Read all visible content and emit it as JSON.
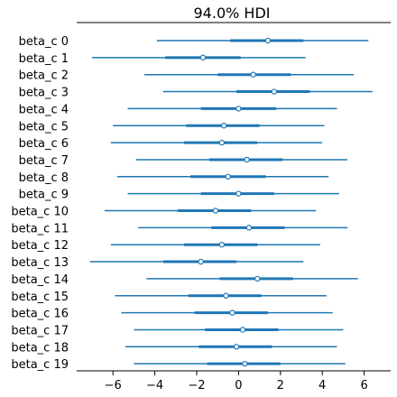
{
  "chart_data": {
    "type": "forest",
    "title": "94.0% HDI",
    "xlabel": "",
    "ylabel": "",
    "xlim": [
      -7.8,
      7.2
    ],
    "xticks": [
      -6,
      -4,
      -2,
      0,
      2,
      4,
      6
    ],
    "xtick_labels": [
      "−6",
      "−4",
      "−2",
      "0",
      "2",
      "4",
      "6"
    ],
    "colors": {
      "line": "#1f77b4",
      "point_fill": "#ffffff",
      "axis": "#000000"
    },
    "series": [
      {
        "name": "beta_c 0",
        "hdi_low": -3.9,
        "iqr_low": -0.4,
        "median": 1.4,
        "iqr_high": 3.1,
        "hdi_high": 6.2
      },
      {
        "name": "beta_c 1",
        "hdi_low": -7.0,
        "iqr_low": -3.5,
        "median": -1.7,
        "iqr_high": 0.1,
        "hdi_high": 3.2
      },
      {
        "name": "beta_c 2",
        "hdi_low": -4.5,
        "iqr_low": -1.0,
        "median": 0.7,
        "iqr_high": 2.5,
        "hdi_high": 5.5
      },
      {
        "name": "beta_c 3",
        "hdi_low": -3.6,
        "iqr_low": -0.1,
        "median": 1.7,
        "iqr_high": 3.4,
        "hdi_high": 6.4
      },
      {
        "name": "beta_c 4",
        "hdi_low": -5.3,
        "iqr_low": -1.8,
        "median": 0.0,
        "iqr_high": 1.8,
        "hdi_high": 4.7
      },
      {
        "name": "beta_c 5",
        "hdi_low": -6.0,
        "iqr_low": -2.5,
        "median": -0.7,
        "iqr_high": 1.0,
        "hdi_high": 4.1
      },
      {
        "name": "beta_c 6",
        "hdi_low": -6.1,
        "iqr_low": -2.6,
        "median": -0.8,
        "iqr_high": 0.9,
        "hdi_high": 4.0
      },
      {
        "name": "beta_c 7",
        "hdi_low": -4.9,
        "iqr_low": -1.4,
        "median": 0.4,
        "iqr_high": 2.1,
        "hdi_high": 5.2
      },
      {
        "name": "beta_c 8",
        "hdi_low": -5.8,
        "iqr_low": -2.3,
        "median": -0.5,
        "iqr_high": 1.3,
        "hdi_high": 4.3
      },
      {
        "name": "beta_c 9",
        "hdi_low": -5.3,
        "iqr_low": -1.8,
        "median": 0.0,
        "iqr_high": 1.7,
        "hdi_high": 4.8
      },
      {
        "name": "beta_c 10",
        "hdi_low": -6.4,
        "iqr_low": -2.9,
        "median": -1.1,
        "iqr_high": 0.6,
        "hdi_high": 3.7
      },
      {
        "name": "beta_c 11",
        "hdi_low": -4.8,
        "iqr_low": -1.3,
        "median": 0.5,
        "iqr_high": 2.2,
        "hdi_high": 5.2
      },
      {
        "name": "beta_c 12",
        "hdi_low": -6.1,
        "iqr_low": -2.6,
        "median": -0.8,
        "iqr_high": 0.9,
        "hdi_high": 3.9
      },
      {
        "name": "beta_c 13",
        "hdi_low": -7.1,
        "iqr_low": -3.6,
        "median": -1.8,
        "iqr_high": -0.1,
        "hdi_high": 3.1
      },
      {
        "name": "beta_c 14",
        "hdi_low": -4.4,
        "iqr_low": -0.9,
        "median": 0.9,
        "iqr_high": 2.6,
        "hdi_high": 5.7
      },
      {
        "name": "beta_c 15",
        "hdi_low": -5.9,
        "iqr_low": -2.4,
        "median": -0.6,
        "iqr_high": 1.1,
        "hdi_high": 4.2
      },
      {
        "name": "beta_c 16",
        "hdi_low": -5.6,
        "iqr_low": -2.1,
        "median": -0.3,
        "iqr_high": 1.4,
        "hdi_high": 4.5
      },
      {
        "name": "beta_c 17",
        "hdi_low": -5.0,
        "iqr_low": -1.6,
        "median": 0.2,
        "iqr_high": 1.9,
        "hdi_high": 5.0
      },
      {
        "name": "beta_c 18",
        "hdi_low": -5.4,
        "iqr_low": -1.9,
        "median": -0.1,
        "iqr_high": 1.6,
        "hdi_high": 4.7
      },
      {
        "name": "beta_c 19",
        "hdi_low": -5.0,
        "iqr_low": -1.5,
        "median": 0.3,
        "iqr_high": 2.0,
        "hdi_high": 5.1
      }
    ]
  }
}
